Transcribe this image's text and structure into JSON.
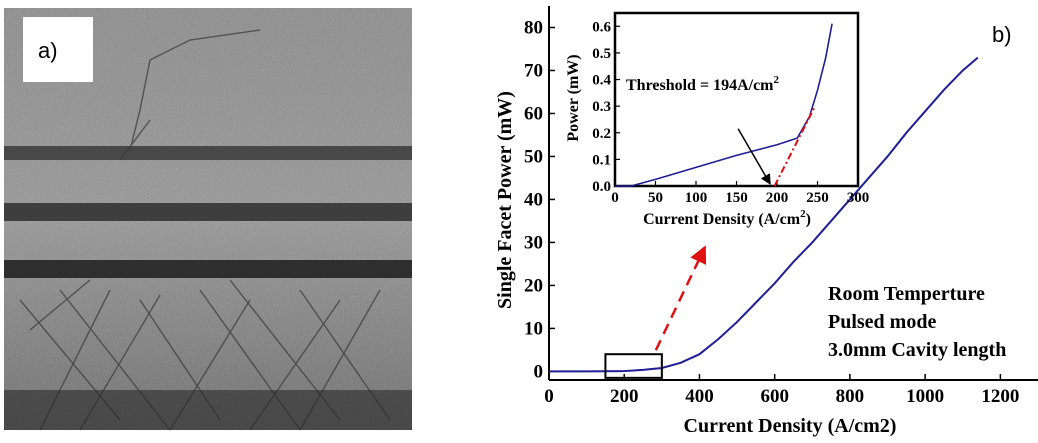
{
  "panels": {
    "a_label": "a)",
    "b_label": "b)"
  },
  "colors": {
    "curve": "#1e1e96",
    "fit_line": "#e01010",
    "zoom_arrow": "#e01010",
    "micrograph_base": "#8c8c8c"
  },
  "chart_data": [
    {
      "type": "line",
      "title": "",
      "xlabel": "Current Density (A/cm2)",
      "ylabel": "Single Facet Power (mW)",
      "xlim": [
        0,
        1300
      ],
      "ylim": [
        -2,
        85
      ],
      "xticks": [
        0,
        200,
        400,
        600,
        800,
        1000,
        1200
      ],
      "yticks": [
        0,
        10,
        20,
        30,
        40,
        50,
        60,
        70,
        80
      ],
      "grid": false,
      "series": [
        {
          "x": [
            0,
            100,
            194,
            250,
            300,
            350,
            400,
            450,
            500,
            550,
            600,
            650,
            700,
            750,
            800,
            850,
            900,
            950,
            1000,
            1050,
            1100,
            1140
          ],
          "y": [
            0,
            0,
            0.05,
            0.35,
            0.8,
            2,
            4,
            7.5,
            11.5,
            16,
            20.5,
            25.5,
            30,
            35,
            40,
            45,
            50,
            55.5,
            60.5,
            65.5,
            70,
            73
          ]
        }
      ],
      "annotations": [
        "Room Temperture",
        "Pulsed mode",
        "3.0mm Cavity length"
      ],
      "zoom_box": {
        "x": [
          150,
          300
        ],
        "y": [
          -1.5,
          4
        ]
      }
    },
    {
      "type": "line",
      "title": "",
      "xlabel": "Current Density (A/cm",
      "xlabel_sup": "2",
      "xlabel_end": ")",
      "ylabel": "Power (mW)",
      "xlim": [
        0,
        300
      ],
      "ylim": [
        0,
        0.65
      ],
      "xticks": [
        0,
        50,
        100,
        150,
        200,
        250,
        300
      ],
      "yticks": [
        "0.0",
        "0.1",
        "0.2",
        "0.3",
        "0.4",
        "0.5",
        "0.6"
      ],
      "grid": false,
      "series": [
        {
          "x": [
            0,
            20,
            50,
            100,
            150,
            200,
            225,
            240,
            250,
            260,
            268
          ],
          "y": [
            0.0,
            0.0,
            0.025,
            0.07,
            0.115,
            0.155,
            0.18,
            0.26,
            0.36,
            0.48,
            0.61
          ]
        }
      ],
      "fit_line": {
        "x": [
          197,
          247
        ],
        "y": [
          0.0,
          0.3
        ]
      },
      "annotation_text": "Threshold = 194A/cm",
      "annotation_sup": "2",
      "arrow_target": {
        "x": 194,
        "y": 0.0
      }
    }
  ]
}
